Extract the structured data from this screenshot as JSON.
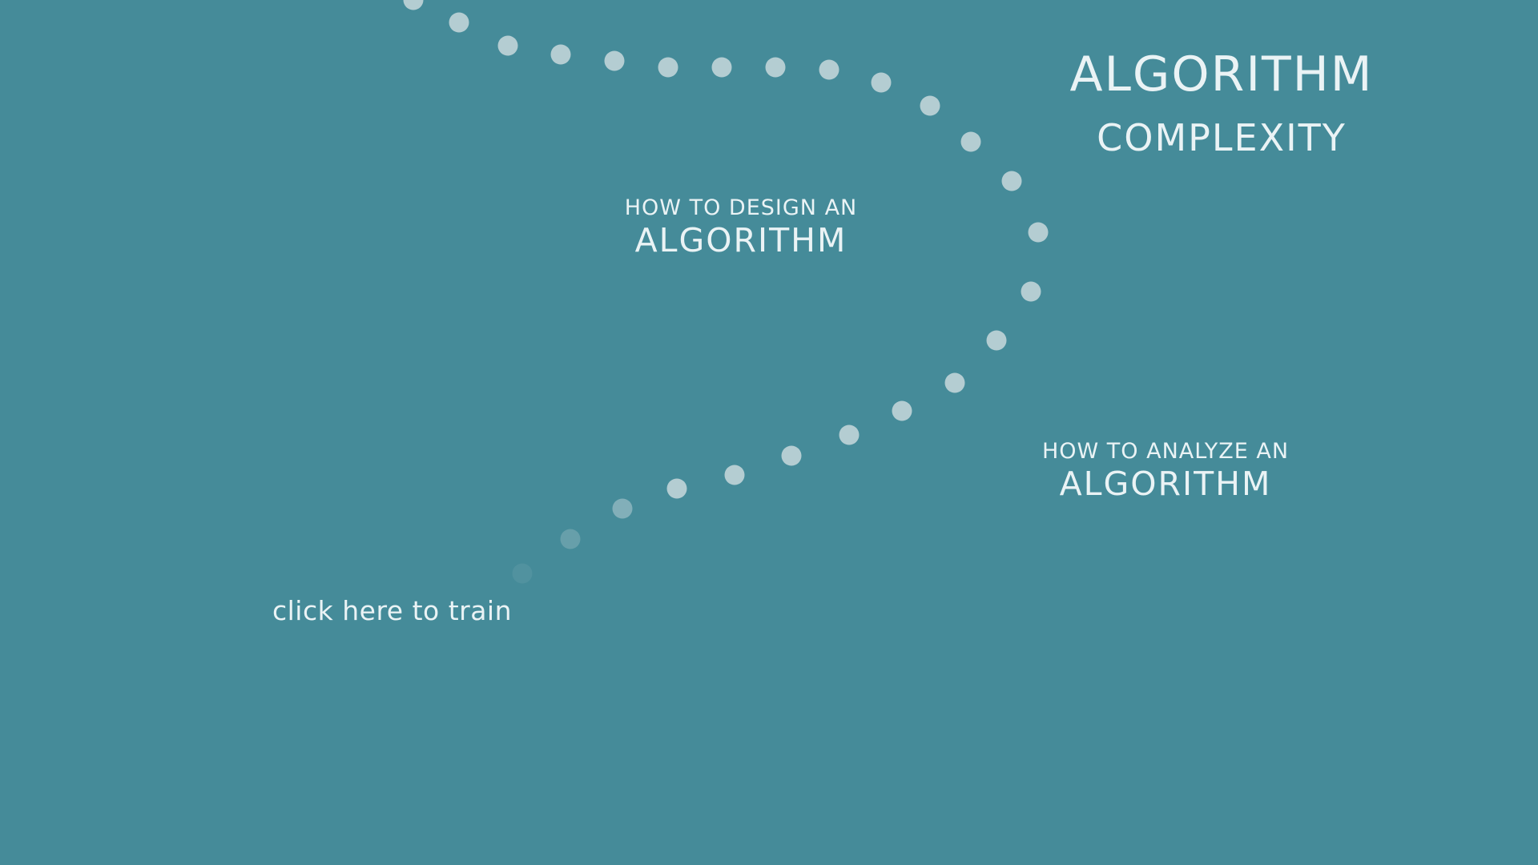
{
  "title": {
    "main": "ALGORITHM",
    "sub": "COMPLEXITY"
  },
  "links": {
    "design": {
      "small": "HOW TO DESIGN AN",
      "large": "ALGORITHM"
    },
    "analyze": {
      "small": "HOW TO ANALYZE AN",
      "large": "ALGORITHM"
    },
    "train": "click here to train"
  },
  "colors": {
    "background": "#458b99",
    "text": "#eaf3f5",
    "dot": "#c8d8dc"
  },
  "decorations": {
    "dotted_trail": "curved dotted path from top-center to lower-left"
  }
}
